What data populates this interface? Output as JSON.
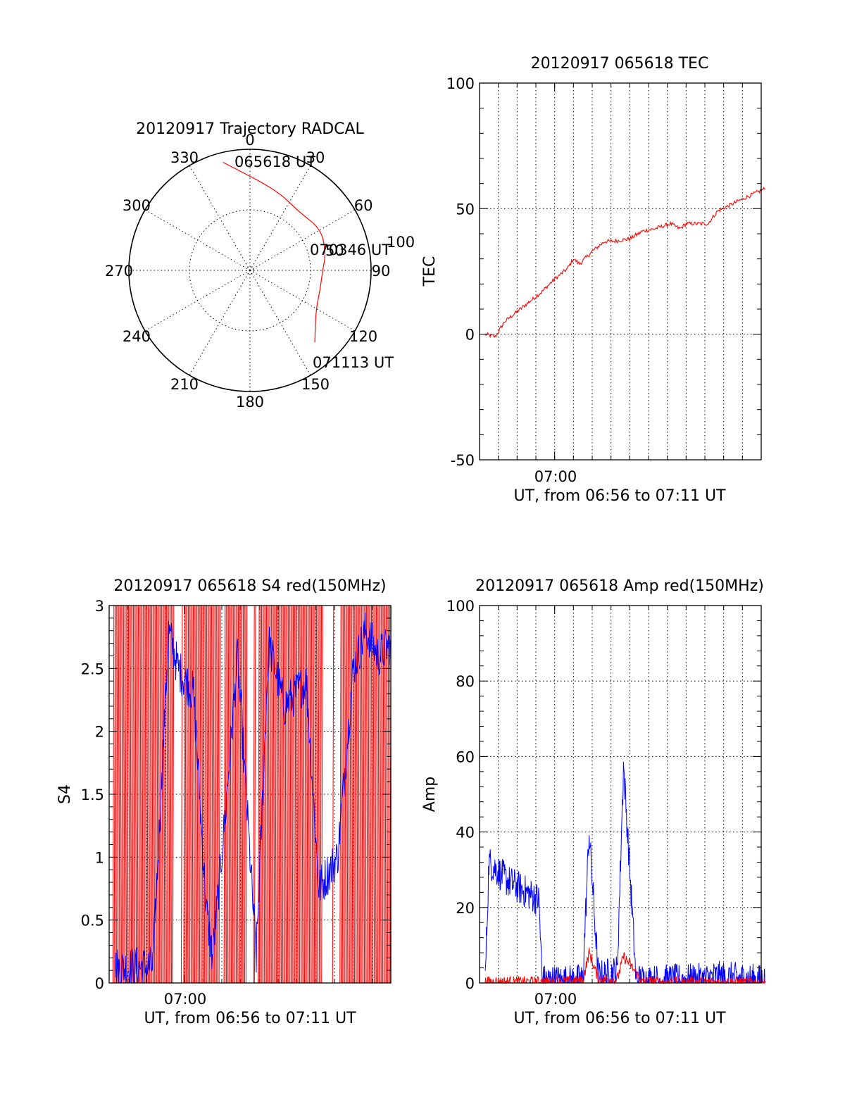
{
  "chart_data": [
    {
      "id": "polar",
      "type": "polar-trajectory",
      "title": "20120917 Trajectory RADCAL",
      "angle_labels": [
        "0",
        "30",
        "60",
        "90",
        "120",
        "150",
        "180",
        "210",
        "240",
        "270",
        "300",
        "330"
      ],
      "radial_labels": [
        "50",
        "100"
      ],
      "rlim": [
        0,
        100
      ],
      "grid": true,
      "track": {
        "color": "#ff0000",
        "points": [
          {
            "az": 346,
            "r": 92
          },
          {
            "az": 18,
            "r": 70
          },
          {
            "az": 40,
            "r": 63
          },
          {
            "az": 60,
            "r": 68
          },
          {
            "az": 78,
            "r": 64
          },
          {
            "az": 90,
            "r": 60
          },
          {
            "az": 105,
            "r": 60
          },
          {
            "az": 122,
            "r": 64
          },
          {
            "az": 138,
            "r": 80
          }
        ]
      },
      "annotations": [
        "065618 UT",
        "070346 UT",
        "071113 UT"
      ]
    },
    {
      "id": "tec",
      "type": "line",
      "title": "20120917 065618 TEC",
      "xlabel": "UT, from 06:56 to 07:11 UT",
      "ylabel": "TEC",
      "x_tick_labels": [
        "07:00"
      ],
      "y_ticks": [
        "100",
        "50",
        "0",
        "-50"
      ],
      "ylim": [
        -50,
        100
      ],
      "xlim": [
        "06:56",
        "07:11"
      ],
      "grid": true,
      "series": [
        {
          "color": "#ff0000",
          "x": [
            "06:56:18",
            "06:56:50",
            "06:57:20",
            "06:58:00",
            "06:58:40",
            "06:59:20",
            "07:00:00",
            "07:00:40",
            "07:01:00",
            "07:01:20",
            "07:02:00",
            "07:02:40",
            "07:03:10",
            "07:04:00",
            "07:04:40",
            "07:05:20",
            "07:06:10",
            "07:06:40",
            "07:07:00",
            "07:08:10",
            "07:08:40",
            "07:09:30",
            "07:10:20",
            "07:11:13"
          ],
          "y": [
            0,
            -1,
            5,
            9,
            13,
            17,
            22,
            26,
            30,
            28,
            33,
            37,
            37,
            38,
            41,
            42,
            44,
            42,
            44,
            44,
            49,
            52,
            55,
            58
          ]
        }
      ]
    },
    {
      "id": "s4",
      "type": "line",
      "title": "20120917 065618 S4 red(150MHz)",
      "xlabel": "UT, from 06:56 to 07:11 UT",
      "ylabel": "S4",
      "x_tick_labels": [
        "07:00"
      ],
      "y_ticks": [
        "3",
        "2.5",
        "2",
        "1.5",
        "1",
        "0.5",
        "0"
      ],
      "ylim": [
        0,
        3
      ],
      "xlim": [
        "06:56",
        "07:11"
      ],
      "grid": true,
      "series": [
        {
          "color": "#ff0000",
          "name": "",
          "style": "noise"
        },
        {
          "color": "#0000ff",
          "x": [
            "06:56:20",
            "06:57:10",
            "06:58:20",
            "06:59:10",
            "06:59:40",
            "07:00:30",
            "07:01:10",
            "07:01:30",
            "07:02:10",
            "07:02:50",
            "07:03:50",
            "07:04:30",
            "07:05:20",
            "07:06:30",
            "07:07:10",
            "07:08:10",
            "07:09:00",
            "07:09:40",
            "07:10:20",
            "07:11:00"
          ],
          "y": [
            0.12,
            0.12,
            0.13,
            2.8,
            2.5,
            2.3,
            0.6,
            0.2,
            1.3,
            2.6,
            0.2,
            2.7,
            2.2,
            2.4,
            0.75,
            1.0,
            2.5,
            2.8,
            2.6,
            2.7
          ]
        }
      ]
    },
    {
      "id": "amp",
      "type": "line",
      "title": "20120917 065618 Amp red(150MHz)",
      "xlabel": "UT, from 06:56 to 07:11 UT",
      "ylabel": "Amp",
      "x_tick_labels": [
        "07:00"
      ],
      "y_ticks": [
        "100",
        "80",
        "60",
        "40",
        "20",
        "0"
      ],
      "ylim": [
        0,
        100
      ],
      "xlim": [
        "06:56",
        "07:11"
      ],
      "grid": true,
      "series": [
        {
          "color": "#0000ff",
          "x": [
            "06:56:18",
            "06:56:30",
            "06:57:30",
            "06:58:30",
            "06:59:10",
            "06:59:20",
            "07:01:00",
            "07:01:30",
            "07:01:50",
            "07:02:20",
            "07:03:20",
            "07:03:40",
            "07:04:00",
            "07:04:20",
            "07:05:00",
            "07:08:00",
            "07:08:30",
            "07:11:13"
          ],
          "y": [
            0.5,
            32,
            27,
            24,
            22,
            0.5,
            0.5,
            0.8,
            40,
            1.5,
            3,
            58,
            30,
            0.8,
            0.5,
            0.8,
            1.5,
            0.5
          ]
        },
        {
          "color": "#ff0000",
          "x": [
            "06:56:18",
            "06:59:20",
            "07:01:30",
            "07:01:50",
            "07:02:20",
            "07:03:20",
            "07:03:40",
            "07:04:00",
            "07:04:40",
            "07:11:13"
          ],
          "y": [
            0.3,
            0.3,
            0.5,
            8,
            1,
            1,
            7,
            5,
            0.3,
            0.2
          ]
        }
      ]
    }
  ]
}
